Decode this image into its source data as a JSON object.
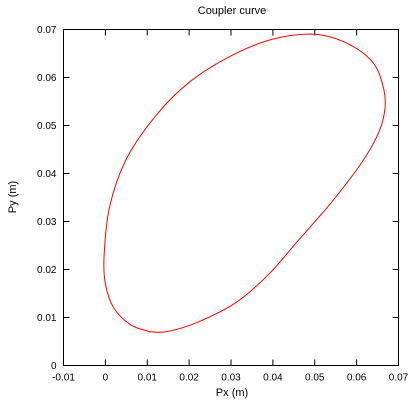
{
  "chart_data": {
    "type": "line",
    "title": "Coupler curve",
    "xlabel": "Px (m)",
    "ylabel": "Py (m)",
    "xlim": [
      -0.01,
      0.07
    ],
    "ylim": [
      0,
      0.07
    ],
    "x_ticks": [
      -0.01,
      0,
      0.01,
      0.02,
      0.03,
      0.04,
      0.05,
      0.06,
      0.07
    ],
    "y_ticks": [
      0,
      0.01,
      0.02,
      0.03,
      0.04,
      0.05,
      0.06,
      0.07
    ],
    "x_tick_labels": [
      "-0.01",
      "0",
      "0.01",
      "0.02",
      "0.03",
      "0.04",
      "0.05",
      "0.06",
      "0.07"
    ],
    "y_tick_labels": [
      "0",
      "0.01",
      "0.02",
      "0.03",
      "0.04",
      "0.05",
      "0.06",
      "0.07"
    ],
    "grid": false,
    "closed": true,
    "series": [
      {
        "color": "#ff0000",
        "x": [
          0.0113,
          0.015,
          0.022,
          0.031,
          0.039,
          0.046,
          0.054,
          0.061,
          0.065,
          0.0667,
          0.0665,
          0.064,
          0.058,
          0.05,
          0.04,
          0.03,
          0.02,
          0.012,
          0.005,
          0.001,
          -0.0003,
          0.0,
          0.002,
          0.006,
          0.01
        ],
        "y": [
          0.007,
          0.0071,
          0.009,
          0.013,
          0.019,
          0.026,
          0.034,
          0.042,
          0.048,
          0.053,
          0.0575,
          0.063,
          0.067,
          0.069,
          0.068,
          0.0645,
          0.059,
          0.052,
          0.043,
          0.033,
          0.023,
          0.017,
          0.012,
          0.0085,
          0.0072
        ]
      }
    ]
  }
}
